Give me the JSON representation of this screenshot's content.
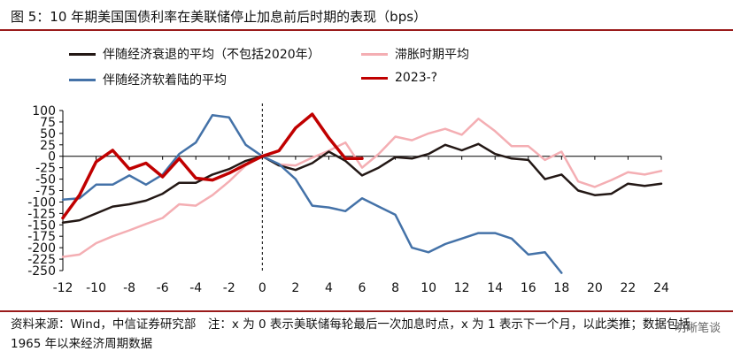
{
  "figure": {
    "title": "图 5：10 年期美国国债利率在美联储停止加息前后时期的表现（bps）",
    "note": "资料来源：Wind，中信证券研究部　注：x 为 0 表示美联储每轮最后一次加息时点，x 为 1 表示下一个月，以此类推；数据包括 1965 年以来经济周期数据",
    "watermark": "明晰笔谈"
  },
  "colors": {
    "recession": "#231815",
    "stagflation": "#f4aeb3",
    "soft_landing": "#4472a8",
    "y2023": "#c00000",
    "rule": "#9a1b1b",
    "axis": "#000000"
  },
  "chart_data": {
    "type": "line",
    "title": "图 5：10 年期美国国债利率在美联储停止加息前后时期的表现（bps）",
    "xlabel": "",
    "ylabel": "",
    "xlim": [
      -12,
      24
    ],
    "ylim": [
      -250,
      100
    ],
    "xticks": [
      -12,
      -10,
      -8,
      -6,
      -4,
      -2,
      0,
      2,
      4,
      6,
      8,
      10,
      12,
      14,
      16,
      18,
      20,
      22,
      24
    ],
    "yticks": [
      100,
      75,
      50,
      25,
      0,
      -25,
      -50,
      -75,
      -100,
      -125,
      -150,
      -175,
      -200,
      -225,
      -250
    ],
    "grid": false,
    "legend_position": "top",
    "series": [
      {
        "name": "伴随经济衰退的平均（不包括2020年）",
        "color_key": "recession",
        "x": [
          -12,
          -11,
          -10,
          -9,
          -8,
          -7,
          -6,
          -5,
          -4,
          -3,
          -2,
          -1,
          0,
          1,
          2,
          3,
          4,
          5,
          6,
          7,
          8,
          9,
          10,
          11,
          12,
          13,
          14,
          15,
          16,
          17,
          18,
          19,
          20,
          21,
          22,
          23,
          24
        ],
        "values": [
          -145,
          -140,
          -125,
          -110,
          -105,
          -97,
          -82,
          -58,
          -58,
          -40,
          -28,
          -10,
          0,
          -20,
          -30,
          -15,
          10,
          -10,
          -42,
          -25,
          -2,
          -5,
          5,
          25,
          13,
          27,
          5,
          -5,
          -8,
          -50,
          -40,
          -75,
          -85,
          -82,
          -60,
          -65,
          -60
        ]
      },
      {
        "name": "滞胀时期平均",
        "color_key": "stagflation",
        "x": [
          -12,
          -11,
          -10,
          -9,
          -8,
          -7,
          -6,
          -5,
          -4,
          -3,
          -2,
          -1,
          0,
          1,
          2,
          3,
          4,
          5,
          6,
          7,
          8,
          9,
          10,
          11,
          12,
          13,
          14,
          15,
          16,
          17,
          18,
          19,
          20,
          21,
          22,
          23,
          24
        ],
        "values": [
          -220,
          -215,
          -190,
          -175,
          -162,
          -148,
          -135,
          -105,
          -108,
          -85,
          -55,
          -20,
          0,
          -18,
          -20,
          -3,
          12,
          30,
          -25,
          5,
          43,
          35,
          50,
          60,
          47,
          82,
          55,
          22,
          22,
          -8,
          10,
          -55,
          -67,
          -52,
          -35,
          -40,
          -32
        ]
      },
      {
        "name": "伴随经济软着陆的平均",
        "color_key": "soft_landing",
        "x": [
          -12,
          -11,
          -10,
          -9,
          -8,
          -7,
          -6,
          -5,
          -4,
          -3,
          -2,
          -1,
          0,
          1,
          2,
          3,
          4,
          5,
          6,
          7,
          8,
          9,
          10,
          11,
          12,
          13,
          14,
          15,
          16,
          17,
          18
        ],
        "values": [
          -95,
          -92,
          -62,
          -62,
          -42,
          -62,
          -40,
          5,
          30,
          90,
          85,
          25,
          0,
          -17,
          -50,
          -108,
          -112,
          -120,
          -92,
          -110,
          -128,
          -200,
          -210,
          -192,
          -180,
          -168,
          -168,
          -180,
          -215,
          -210,
          -255
        ]
      },
      {
        "name": "2023-?",
        "color_key": "y2023",
        "x": [
          -12,
          -11,
          -10,
          -9,
          -8,
          -7,
          -6,
          -5,
          -4,
          -3,
          -2,
          -1,
          0,
          1,
          2,
          3,
          4,
          5,
          6
        ],
        "values": [
          -135,
          -85,
          -12,
          13,
          -28,
          -15,
          -45,
          -5,
          -48,
          -52,
          -37,
          -18,
          0,
          12,
          62,
          92,
          40,
          -5,
          -5
        ]
      }
    ]
  }
}
